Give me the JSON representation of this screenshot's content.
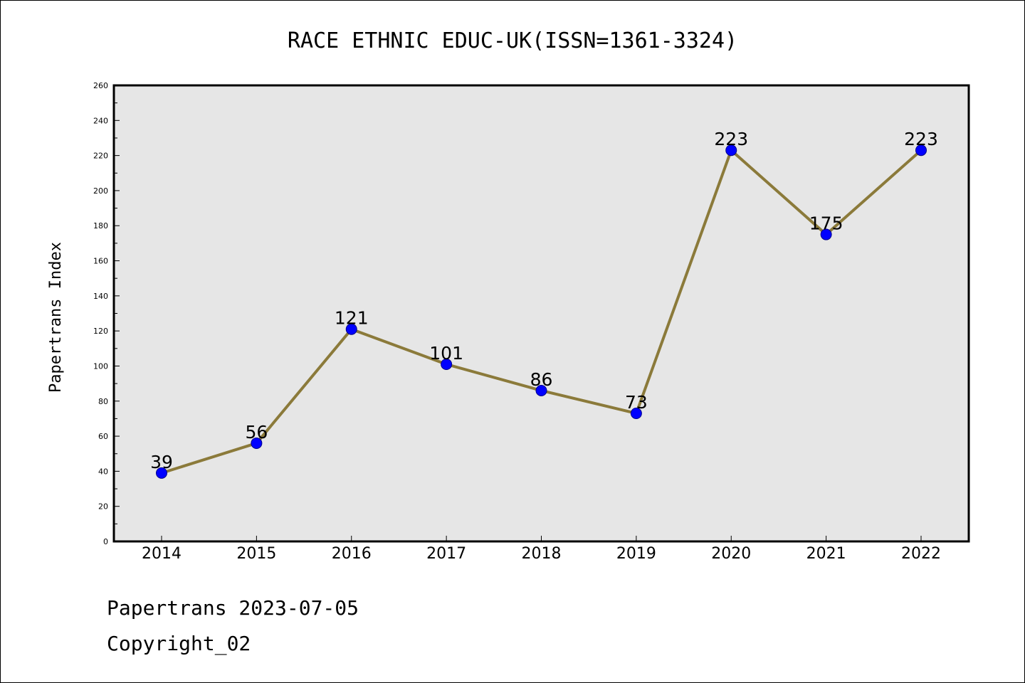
{
  "chart_data": {
    "type": "line",
    "title": "RACE ETHNIC EDUC-UK(ISSN=1361-3324)",
    "ylabel": "Papertrans Index",
    "xlabel": "",
    "categories": [
      "2014",
      "2015",
      "2016",
      "2017",
      "2018",
      "2019",
      "2020",
      "2021",
      "2022"
    ],
    "values": [
      39,
      56,
      121,
      101,
      86,
      73,
      223,
      175,
      223
    ],
    "ylim": [
      0,
      260
    ],
    "yticks": [
      0,
      20,
      40,
      60,
      80,
      100,
      120,
      140,
      160,
      180,
      200,
      220,
      240,
      260
    ],
    "grid": false,
    "legend": "none",
    "colors": {
      "line": "#8b7a3a",
      "marker": "#0000ff",
      "plot_background": "#e6e6e6"
    }
  },
  "footer": {
    "line1": "Papertrans 2023-07-05",
    "line2": "Copyright_02"
  }
}
